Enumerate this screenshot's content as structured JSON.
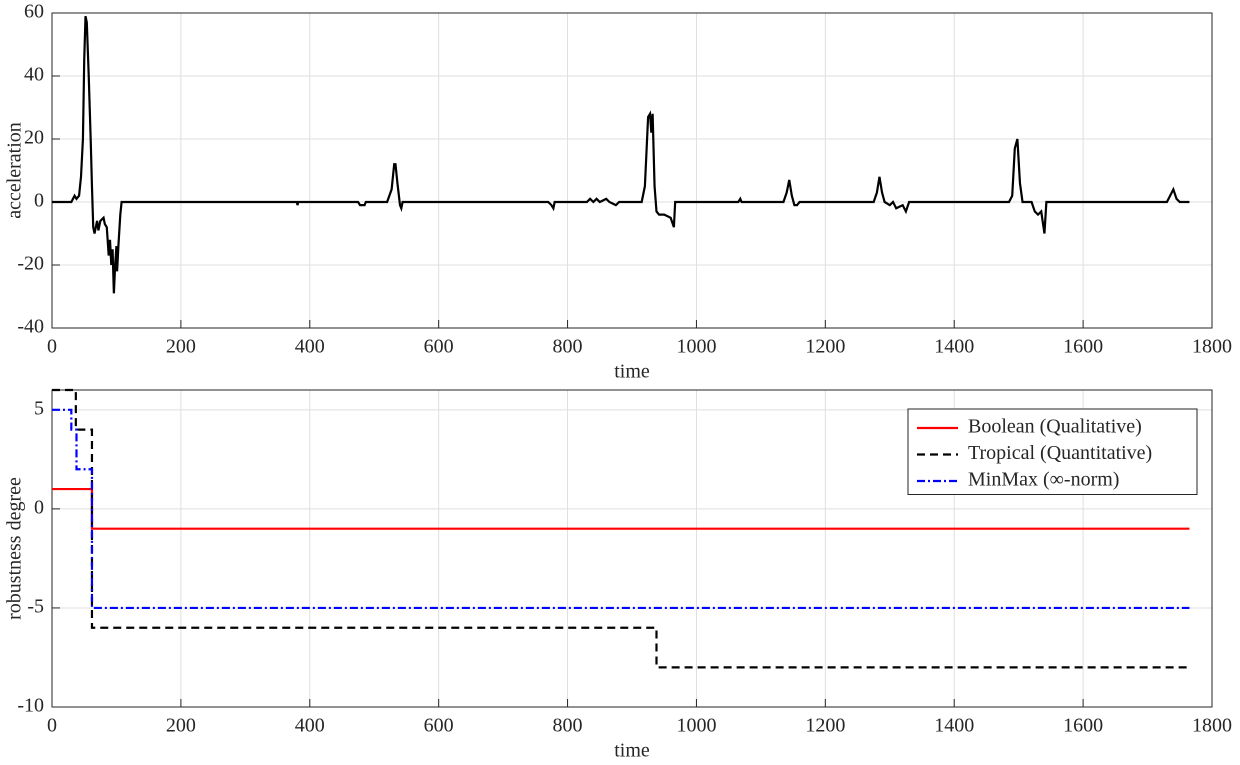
{
  "chart_data": [
    {
      "type": "line",
      "xlabel": "time",
      "ylabel": "acceleration",
      "x": [
        0,
        30,
        35,
        38,
        42,
        45,
        48,
        50,
        52,
        54,
        57,
        60,
        62,
        64,
        66,
        68,
        70,
        72,
        75,
        80,
        82,
        85,
        88,
        90,
        92,
        94,
        96,
        98,
        100,
        101,
        103,
        106,
        108,
        380,
        381,
        382,
        475,
        478,
        485,
        487,
        520,
        527,
        531,
        533,
        536,
        540,
        542,
        544,
        770,
        775,
        778,
        780,
        830,
        835,
        840,
        845,
        850,
        860,
        865,
        875,
        880,
        915,
        920,
        925,
        928,
        930,
        932,
        935,
        938,
        942,
        950,
        960,
        965,
        967,
        1065,
        1068,
        1070,
        1135,
        1140,
        1144,
        1148,
        1152,
        1156,
        1160,
        1275,
        1280,
        1284,
        1288,
        1292,
        1300,
        1305,
        1310,
        1320,
        1325,
        1330,
        1485,
        1490,
        1494,
        1498,
        1502,
        1506,
        1520,
        1525,
        1530,
        1535,
        1540,
        1543,
        1730,
        1735,
        1740,
        1745,
        1750,
        1765
      ],
      "values": [
        0,
        0,
        2,
        1,
        2,
        8,
        20,
        45,
        59,
        57,
        40,
        20,
        5,
        -8,
        -10,
        -8,
        -6,
        -9,
        -6,
        -5,
        -7,
        -8,
        -17,
        -12,
        -20,
        -15,
        -29,
        -20,
        -14,
        -22,
        -14,
        -4,
        0,
        0,
        -1,
        0,
        0,
        -1,
        -1,
        0,
        0,
        4,
        12,
        12,
        6,
        -1,
        -2,
        0,
        0,
        -1,
        -2,
        0,
        0,
        1,
        0,
        1,
        0,
        1,
        0,
        -1,
        0,
        0,
        5,
        27,
        28,
        22,
        28,
        5,
        -3,
        -4,
        -4,
        -5,
        -8,
        0,
        0,
        1,
        0,
        0,
        3,
        7,
        2,
        -1,
        -1,
        0,
        0,
        3,
        8,
        3,
        0,
        -1,
        0,
        -2,
        -1,
        -3,
        0,
        0,
        2,
        17,
        20,
        6,
        0,
        0,
        -3,
        -4,
        -3,
        -10,
        0,
        0,
        2,
        4,
        1,
        0,
        0
      ],
      "color": "#000000",
      "xlim": [
        0,
        1800
      ],
      "ylim": [
        -40,
        60
      ],
      "xticks": [
        0,
        200,
        400,
        600,
        800,
        1000,
        1200,
        1400,
        1600,
        1800
      ],
      "yticks": [
        -40,
        -20,
        0,
        20,
        40,
        60
      ],
      "grid": true
    },
    {
      "type": "line",
      "xlabel": "time",
      "ylabel": "robustness degree",
      "series": [
        {
          "name": "Boolean (Qualitative)",
          "color": "#ff0000",
          "style": "solid",
          "x": [
            0,
            62,
            62,
            1765
          ],
          "values": [
            1,
            1,
            -1,
            -1
          ]
        },
        {
          "name": "Tropical (Quantitative)",
          "color": "#000000",
          "style": "dashed",
          "x": [
            0,
            37,
            37,
            62,
            62,
            938,
            938,
            1765
          ],
          "values": [
            6,
            6,
            4,
            4,
            -6,
            -6,
            -8,
            -8
          ]
        },
        {
          "name": "MinMax (∞-norm)",
          "color": "#0000ff",
          "style": "dashdot",
          "x": [
            0,
            30,
            30,
            38,
            38,
            62,
            62,
            1765
          ],
          "values": [
            5,
            5,
            4,
            4,
            2,
            2,
            -5,
            -5
          ]
        }
      ],
      "xlim": [
        0,
        1800
      ],
      "ylim": [
        -10,
        6
      ],
      "xticks": [
        0,
        200,
        400,
        600,
        800,
        1000,
        1200,
        1400,
        1600,
        1800
      ],
      "yticks": [
        -10,
        -5,
        0,
        5
      ],
      "grid": true,
      "legend": "northeast"
    }
  ]
}
